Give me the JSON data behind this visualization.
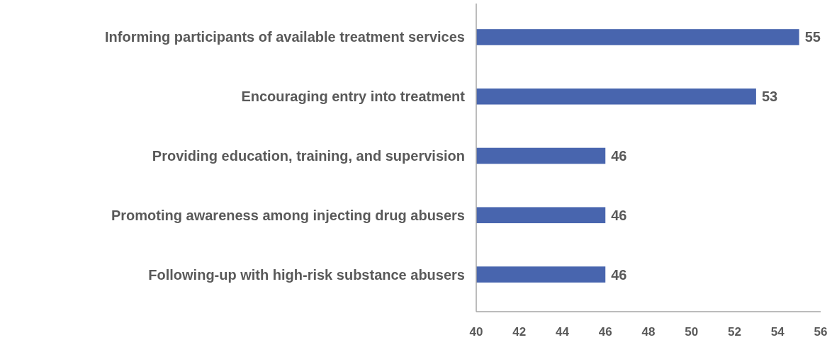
{
  "chart_data": {
    "type": "bar",
    "orientation": "horizontal",
    "categories": [
      "Informing participants of available treatment services",
      "Encouraging entry into treatment",
      "Providing education, training, and supervision",
      "Promoting awareness among injecting drug abusers",
      "Following-up with high-risk substance abusers"
    ],
    "values": [
      55,
      53,
      46,
      46,
      46
    ],
    "color": "#4865ae",
    "xlim": [
      40,
      56
    ],
    "xticks": [
      40,
      42,
      44,
      46,
      48,
      50,
      52,
      54,
      56
    ],
    "data_labels": true,
    "grid": false
  }
}
